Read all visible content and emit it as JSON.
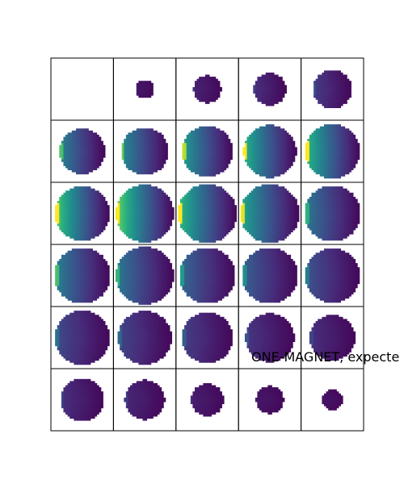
{
  "chart_data": {
    "type": "heatmap",
    "grid": {
      "rows": 6,
      "cols": 5
    },
    "title": "",
    "annotation": "ONE-MAGNET, expecte",
    "colormap": [
      "#440154",
      "#472c7a",
      "#3b518b",
      "#2c718e",
      "#21908d",
      "#27ad81",
      "#5cc863",
      "#aadc32",
      "#fde725"
    ],
    "panels": [
      {
        "radius": 0.0,
        "edge_intensity": 0.0
      },
      {
        "radius": 0.15,
        "edge_intensity": 0.05
      },
      {
        "radius": 0.22,
        "edge_intensity": 0.1
      },
      {
        "radius": 0.26,
        "edge_intensity": 0.15
      },
      {
        "radius": 0.31,
        "edge_intensity": 0.2
      },
      {
        "radius": 0.36,
        "edge_intensity": 0.55
      },
      {
        "radius": 0.38,
        "edge_intensity": 0.6
      },
      {
        "radius": 0.41,
        "edge_intensity": 0.7
      },
      {
        "radius": 0.42,
        "edge_intensity": 0.8
      },
      {
        "radius": 0.44,
        "edge_intensity": 0.85
      },
      {
        "radius": 0.44,
        "edge_intensity": 0.95
      },
      {
        "radius": 0.46,
        "edge_intensity": 1.0
      },
      {
        "radius": 0.47,
        "edge_intensity": 0.85
      },
      {
        "radius": 0.47,
        "edge_intensity": 0.75
      },
      {
        "radius": 0.45,
        "edge_intensity": 0.5
      },
      {
        "radius": 0.45,
        "edge_intensity": 0.55
      },
      {
        "radius": 0.46,
        "edge_intensity": 0.5
      },
      {
        "radius": 0.45,
        "edge_intensity": 0.42
      },
      {
        "radius": 0.45,
        "edge_intensity": 0.38
      },
      {
        "radius": 0.44,
        "edge_intensity": 0.32
      },
      {
        "radius": 0.44,
        "edge_intensity": 0.28
      },
      {
        "radius": 0.43,
        "edge_intensity": 0.25
      },
      {
        "radius": 0.41,
        "edge_intensity": 0.22
      },
      {
        "radius": 0.39,
        "edge_intensity": 0.18
      },
      {
        "radius": 0.36,
        "edge_intensity": 0.15
      },
      {
        "radius": 0.35,
        "edge_intensity": 0.15
      },
      {
        "radius": 0.32,
        "edge_intensity": 0.12
      },
      {
        "radius": 0.26,
        "edge_intensity": 0.08
      },
      {
        "radius": 0.22,
        "edge_intensity": 0.05
      },
      {
        "radius": 0.16,
        "edge_intensity": 0.03
      }
    ]
  }
}
